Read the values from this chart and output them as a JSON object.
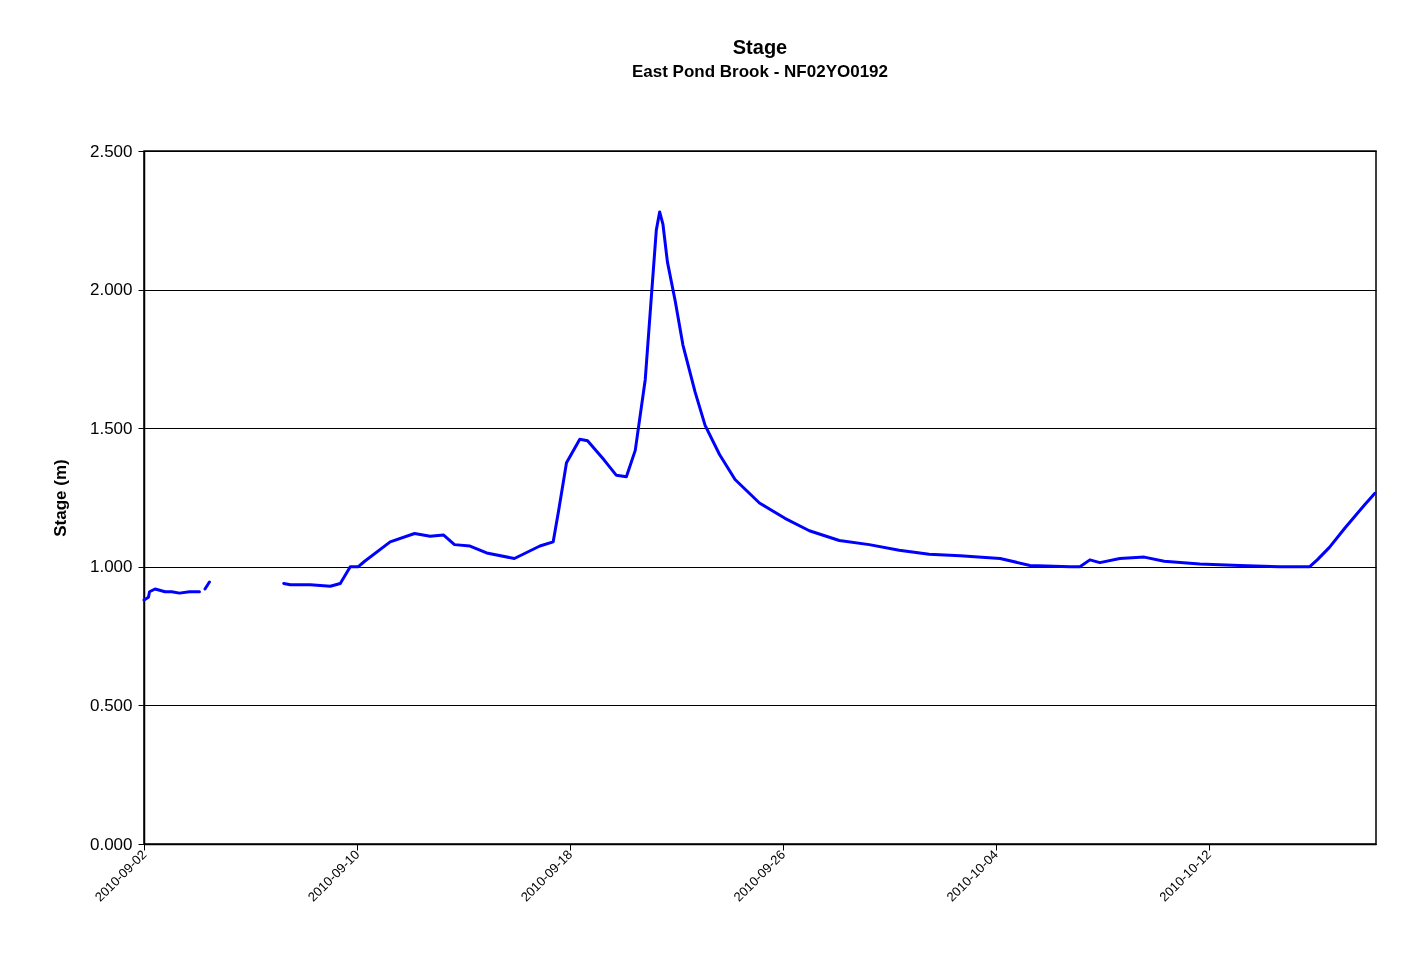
{
  "chart_data": {
    "type": "line",
    "title": "Stage",
    "subtitle": "East Pond Brook - NF02YO0192",
    "ylabel": "Stage (m)",
    "xlim": [
      "2010-09-02",
      "2010-10-18T07:00"
    ],
    "xticks": [
      "2010-09-02",
      "2010-09-10",
      "2010-09-18",
      "2010-09-26",
      "2010-10-04",
      "2010-10-12"
    ],
    "ylim": [
      0,
      2.5
    ],
    "yticks": [
      {
        "value": 0,
        "label": "0.000"
      },
      {
        "value": 0.5,
        "label": "0.500"
      },
      {
        "value": 1,
        "label": "1.000"
      },
      {
        "value": 1.5,
        "label": "1.500"
      },
      {
        "value": 2,
        "label": "2.000"
      },
      {
        "value": 2.5,
        "label": "2.500"
      }
    ],
    "grid": "y",
    "legend": false,
    "marker": "none",
    "line_style": "solid",
    "x": [
      "2010-09-02T00:00",
      "2010-09-02T04:00",
      "2010-09-02T05:00",
      "2010-09-02T10:00",
      "2010-09-02T19:00",
      "2010-09-03T01:00",
      "2010-09-03T08:00",
      "2010-09-03T17:00",
      "2010-09-04T02:00",
      "2010-09-04T05:00",
      "2010-09-04T07:00",
      "2010-09-04T11:00",
      "2010-09-05T12:00",
      "2010-09-07T06:00",
      "2010-09-07T12:00",
      "2010-09-08T06:00",
      "2010-09-09T00:00",
      "2010-09-09T09:00",
      "2010-09-09T18:00",
      "2010-09-10T01:00",
      "2010-09-10T07:00",
      "2010-09-11T06:00",
      "2010-09-12T04:00",
      "2010-09-12T18:00",
      "2010-09-13T06:00",
      "2010-09-13T16:00",
      "2010-09-14T06:00",
      "2010-09-14T21:00",
      "2010-09-15T22:00",
      "2010-09-16T21:00",
      "2010-09-17T09:00",
      "2010-09-17T14:00",
      "2010-09-17T21:00",
      "2010-09-18T09:00",
      "2010-09-18T16:00",
      "2010-09-19T07:00",
      "2010-09-19T18:00",
      "2010-09-20T03:00",
      "2010-09-20T11:00",
      "2010-09-20T20:00",
      "2010-09-21T02:00",
      "2010-09-21T06:00",
      "2010-09-21T09:00",
      "2010-09-21T12:00",
      "2010-09-21T16:00",
      "2010-09-21T23:00",
      "2010-09-22T06:00",
      "2010-09-22T17:00",
      "2010-09-23T02:00",
      "2010-09-23T15:00",
      "2010-09-24T05:00",
      "2010-09-25T03:00",
      "2010-09-26T02:00",
      "2010-09-27T00:00",
      "2010-09-28T03:00",
      "2010-09-29T06:00",
      "2010-09-30T09:00",
      "2010-10-01T12:00",
      "2010-10-02T16:00",
      "2010-10-04T04:00",
      "2010-10-05T07:00",
      "2010-10-06T19:00",
      "2010-10-07T04:00",
      "2010-10-07T13:00",
      "2010-10-07T22:00",
      "2010-10-08T16:00",
      "2010-10-09T14:00",
      "2010-10-10T08:00",
      "2010-10-11T16:00",
      "2010-10-13T04:00",
      "2010-10-14T16:00",
      "2010-10-15T19:00",
      "2010-10-16T02:00",
      "2010-10-16T13:00",
      "2010-10-17T03:00",
      "2010-10-17T21:00",
      "2010-10-18T06:00"
    ],
    "series": [
      {
        "color": "#0000ff",
        "values": [
          0.88,
          0.89,
          0.91,
          0.92,
          0.91,
          0.91,
          0.905,
          0.91,
          0.91,
          null,
          0.92,
          0.945,
          null,
          0.94,
          0.935,
          0.935,
          0.93,
          0.94,
          1.0,
          1.0,
          1.02,
          1.09,
          1.12,
          1.11,
          1.115,
          1.08,
          1.075,
          1.05,
          1.03,
          1.075,
          1.09,
          1.205,
          1.375,
          1.46,
          1.455,
          1.385,
          1.33,
          1.325,
          1.42,
          1.675,
          2.0,
          2.215,
          2.28,
          2.235,
          2.1,
          1.96,
          1.8,
          1.63,
          1.51,
          1.405,
          1.315,
          1.23,
          1.175,
          1.13,
          1.095,
          1.08,
          1.06,
          1.045,
          1.04,
          1.03,
          1.005,
          1.0,
          1.0,
          1.025,
          1.015,
          1.03,
          1.035,
          1.02,
          1.01,
          1.005,
          1.0,
          1.0,
          1.025,
          1.07,
          1.14,
          1.225,
          1.265
        ]
      }
    ]
  }
}
